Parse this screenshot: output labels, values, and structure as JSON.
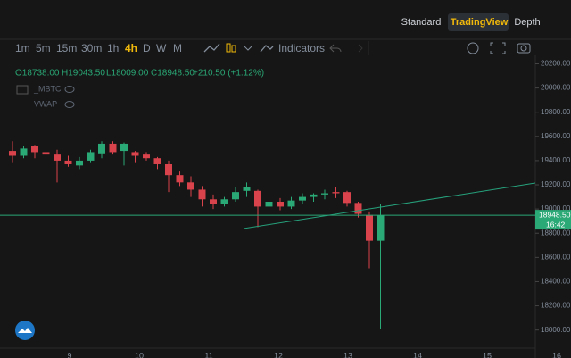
{
  "tabs": [
    "Standard",
    "TradingView",
    "Depth"
  ],
  "active_tab": "TradingView",
  "intervals": [
    "1m",
    "5m",
    "15m",
    "30m",
    "1h",
    "4h",
    "D",
    "W",
    "M"
  ],
  "active_interval": "4h",
  "indicators_button": "Indicators",
  "legend": {
    "open": "O18738.00",
    "high": "H19043.50",
    "low": "L18009.00",
    "close": "C18948.50",
    "change": "+210.50 (+1.12%)"
  },
  "studies": [
    "_MBTC",
    "VWAP"
  ],
  "price_chart": {
    "ylim": [
      17850,
      20270
    ],
    "yticks": [
      {
        "value": 20200,
        "label": "20200.00"
      },
      {
        "value": 20000,
        "label": "20000.00"
      },
      {
        "value": 19800,
        "label": "19800.00"
      },
      {
        "value": 19600,
        "label": "19600.00"
      },
      {
        "value": 19400,
        "label": "19400.00"
      },
      {
        "value": 19200,
        "label": "19200.00"
      },
      {
        "value": 19000,
        "label": "19000.00"
      },
      {
        "value": 18800,
        "label": "18800.00"
      },
      {
        "value": 18600,
        "label": "18600.00"
      },
      {
        "value": 18400,
        "label": "18400.00"
      },
      {
        "value": 18200,
        "label": "18200.00"
      },
      {
        "value": 18000,
        "label": "18000.00"
      }
    ],
    "xticks": [
      "9",
      "10",
      "11",
      "12",
      "13",
      "14",
      "15",
      "16"
    ],
    "up_color": "#2aa876",
    "down_color": "#d9434b",
    "last_price": {
      "value": 18948.5,
      "label": "18948.50"
    },
    "countdown": "16:42",
    "candles": [
      {
        "open": 19480,
        "high": 19560,
        "low": 19380,
        "close": 19440
      },
      {
        "open": 19440,
        "high": 19520,
        "low": 19420,
        "close": 19500
      },
      {
        "open": 19520,
        "high": 19530,
        "low": 19420,
        "close": 19470
      },
      {
        "open": 19470,
        "high": 19510,
        "low": 19400,
        "close": 19450
      },
      {
        "open": 19450,
        "high": 19490,
        "low": 19220,
        "close": 19400
      },
      {
        "open": 19400,
        "high": 19440,
        "low": 19350,
        "close": 19370
      },
      {
        "open": 19360,
        "high": 19430,
        "low": 19330,
        "close": 19400
      },
      {
        "open": 19400,
        "high": 19490,
        "low": 19380,
        "close": 19470
      },
      {
        "open": 19460,
        "high": 19560,
        "low": 19420,
        "close": 19540
      },
      {
        "open": 19540,
        "high": 19560,
        "low": 19450,
        "close": 19470
      },
      {
        "open": 19480,
        "high": 19550,
        "low": 19360,
        "close": 19540
      },
      {
        "open": 19470,
        "high": 19480,
        "low": 19380,
        "close": 19440
      },
      {
        "open": 19450,
        "high": 19470,
        "low": 19400,
        "close": 19420
      },
      {
        "open": 19420,
        "high": 19430,
        "low": 19330,
        "close": 19370
      },
      {
        "open": 19370,
        "high": 19400,
        "low": 19140,
        "close": 19280
      },
      {
        "open": 19280,
        "high": 19310,
        "low": 19190,
        "close": 19220
      },
      {
        "open": 19220,
        "high": 19270,
        "low": 19100,
        "close": 19160
      },
      {
        "open": 19160,
        "high": 19190,
        "low": 19020,
        "close": 19080
      },
      {
        "open": 19080,
        "high": 19120,
        "low": 19000,
        "close": 19040
      },
      {
        "open": 19040,
        "high": 19100,
        "low": 19020,
        "close": 19080
      },
      {
        "open": 19080,
        "high": 19180,
        "low": 19060,
        "close": 19140
      },
      {
        "open": 19150,
        "high": 19220,
        "low": 19100,
        "close": 19180
      },
      {
        "open": 19150,
        "high": 19160,
        "low": 18850,
        "close": 19020
      },
      {
        "open": 19020,
        "high": 19090,
        "low": 18980,
        "close": 19060
      },
      {
        "open": 19060,
        "high": 19090,
        "low": 18990,
        "close": 19020
      },
      {
        "open": 19020,
        "high": 19100,
        "low": 19000,
        "close": 19070
      },
      {
        "open": 19070,
        "high": 19130,
        "low": 19040,
        "close": 19100
      },
      {
        "open": 19100,
        "high": 19130,
        "low": 19060,
        "close": 19120
      },
      {
        "open": 19120,
        "high": 19160,
        "low": 19080,
        "close": 19130
      },
      {
        "open": 19140,
        "high": 19180,
        "low": 19090,
        "close": 19130
      },
      {
        "open": 19140,
        "high": 19150,
        "low": 19020,
        "close": 19050
      },
      {
        "open": 19050,
        "high": 19060,
        "low": 18930,
        "close": 18960
      },
      {
        "open": 18950,
        "high": 18980,
        "low": 18510,
        "close": 18738
      },
      {
        "open": 18738,
        "high": 19043.5,
        "low": 18009,
        "close": 18948.5
      }
    ]
  }
}
